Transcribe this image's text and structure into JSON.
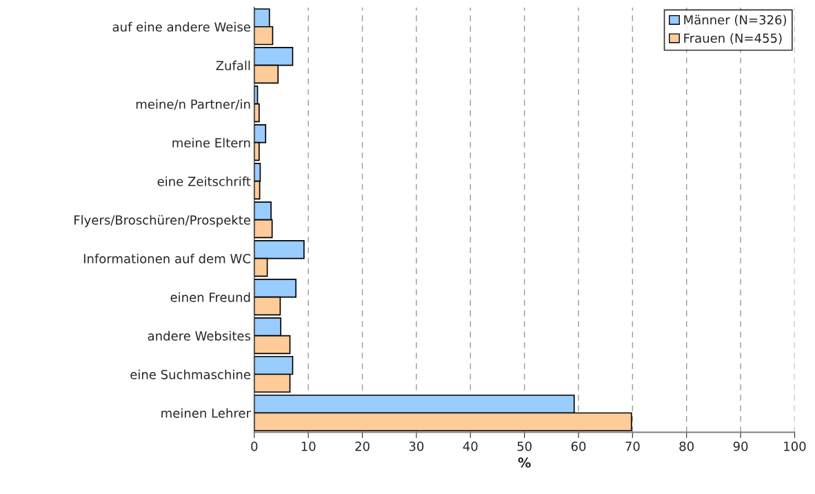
{
  "chart_data": {
    "type": "bar",
    "orientation": "horizontal",
    "xlabel": "%",
    "categories": [
      "auf eine andere Weise",
      "Zufall",
      "meine/n Partner/in",
      "meine Eltern",
      "eine Zeitschrift",
      "Flyers/Broschüren/Prospekte",
      "Informationen auf dem WC",
      "einen Freund",
      "andere Websites",
      "eine Suchmaschine",
      "meinen Lehrer"
    ],
    "series": [
      {
        "name": "Männer (N=326)",
        "color": "#99ccff",
        "values": [
          2.8,
          7.1,
          0.6,
          2.1,
          1.1,
          3.1,
          9.2,
          7.7,
          4.9,
          7.1,
          59.2
        ]
      },
      {
        "name": "Frauen (N=455)",
        "color": "#ffcc99",
        "values": [
          3.4,
          4.4,
          0.9,
          0.9,
          1.0,
          3.3,
          2.4,
          4.8,
          6.6,
          6.6,
          69.8
        ]
      }
    ],
    "xlim": [
      0,
      100
    ],
    "xticks": [
      0,
      10,
      20,
      30,
      40,
      50,
      60,
      70,
      80,
      90,
      100
    ],
    "grid": "x",
    "legend": "top right"
  }
}
